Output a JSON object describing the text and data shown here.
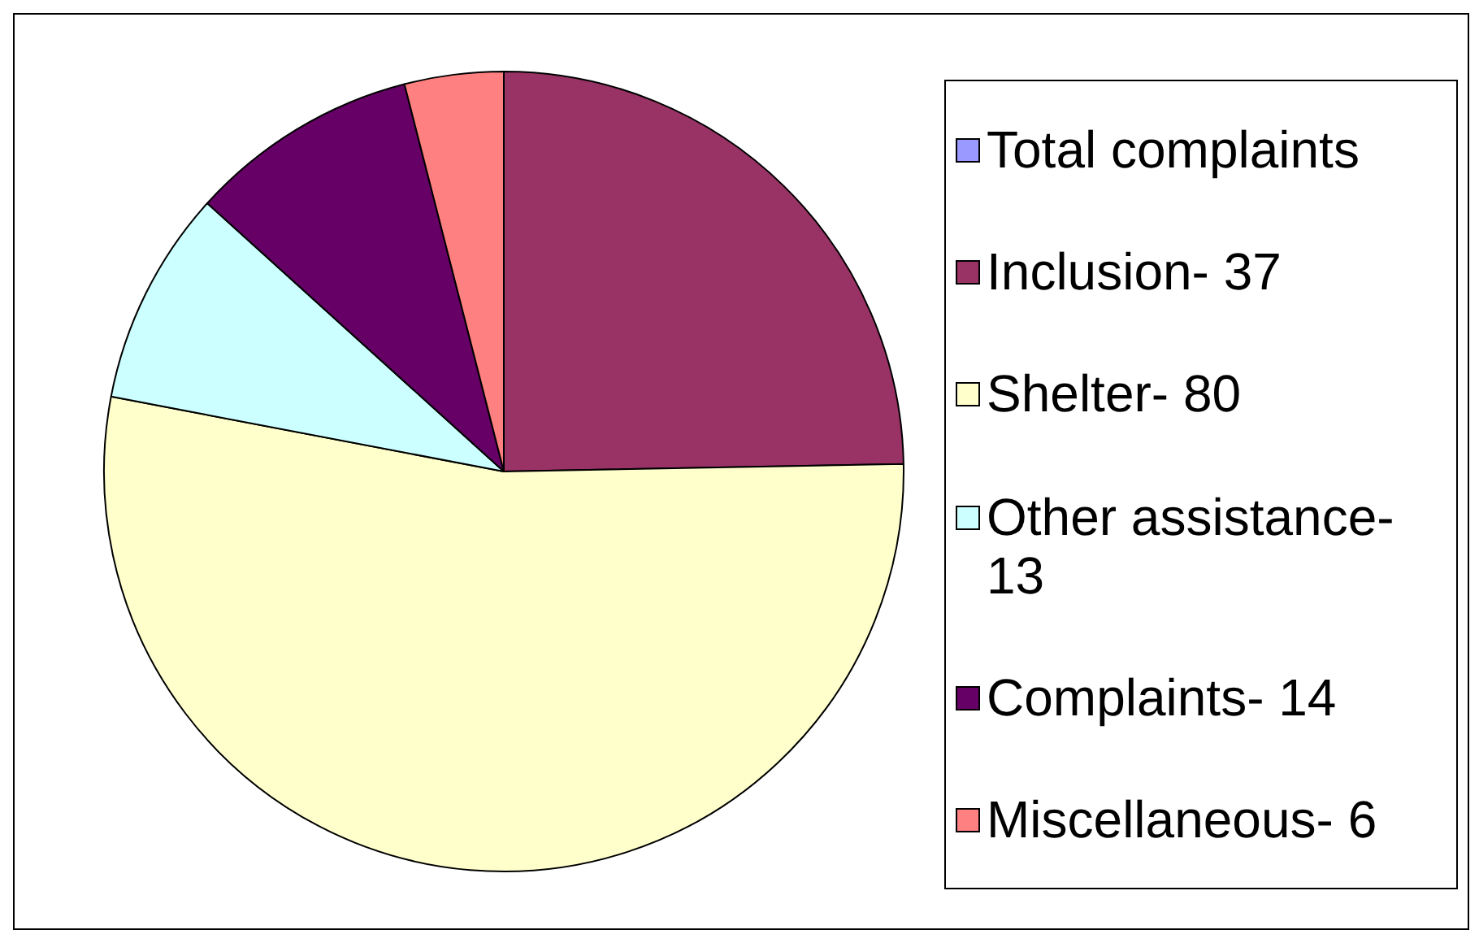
{
  "chart_data": {
    "type": "pie",
    "categories": [
      "Total complaints",
      "Inclusion- 37",
      "Shelter- 80",
      "Other assistance- 13",
      "Complaints- 14",
      "Miscellaneous- 6"
    ],
    "values": [
      0,
      24.7,
      53.3,
      8.7,
      9.3,
      4.0
    ],
    "colors": [
      "#9999ff",
      "#993366",
      "#ffffcc",
      "#ccffff",
      "#660066",
      "#ff8080"
    ],
    "legend": "right"
  }
}
